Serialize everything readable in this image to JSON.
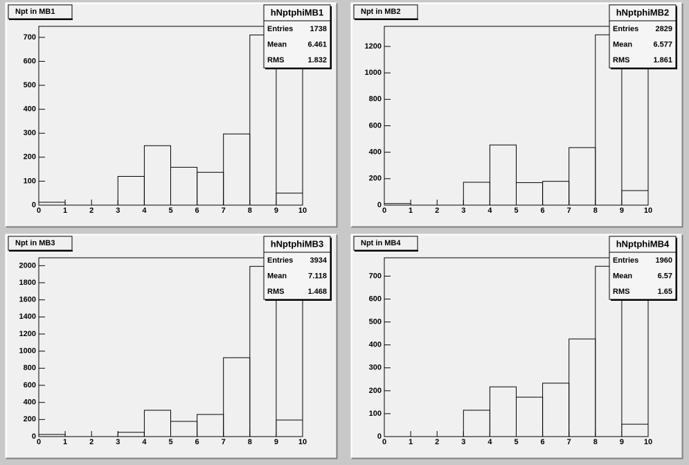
{
  "chart_data": [
    {
      "type": "histogram",
      "title": "Npt in MB1",
      "bins": [
        0,
        1,
        2,
        3,
        4,
        5,
        6,
        7,
        8,
        9,
        10
      ],
      "values": [
        12,
        0,
        0,
        120,
        248,
        158,
        137,
        297,
        710,
        50
      ],
      "xlim": [
        0,
        10
      ],
      "ylim": [
        0,
        746
      ],
      "xticks": [
        0,
        1,
        2,
        3,
        4,
        5,
        6,
        7,
        8,
        9,
        10
      ],
      "yticks": [
        0,
        100,
        200,
        300,
        400,
        500,
        600,
        700
      ],
      "stats": {
        "name": "hNptphiMB1",
        "rows": [
          {
            "label": "Entries",
            "value": 1738
          },
          {
            "label": "Mean",
            "value": 6.461
          },
          {
            "label": "RMS",
            "value": 1.832
          }
        ]
      }
    },
    {
      "type": "histogram",
      "title": "Npt in MB2",
      "bins": [
        0,
        1,
        2,
        3,
        4,
        5,
        6,
        7,
        8,
        9,
        10
      ],
      "values": [
        12,
        0,
        0,
        173,
        455,
        170,
        180,
        435,
        1288,
        110
      ],
      "xlim": [
        0,
        10
      ],
      "ylim": [
        0,
        1352
      ],
      "xticks": [
        0,
        1,
        2,
        3,
        4,
        5,
        6,
        7,
        8,
        9,
        10
      ],
      "yticks": [
        0,
        200,
        400,
        600,
        800,
        1000,
        1200
      ],
      "stats": {
        "name": "hNptphiMB2",
        "rows": [
          {
            "label": "Entries",
            "value": 2829
          },
          {
            "label": "Mean",
            "value": 6.577
          },
          {
            "label": "RMS",
            "value": 1.861
          }
        ]
      }
    },
    {
      "type": "histogram",
      "title": "Npt in MB3",
      "bins": [
        0,
        1,
        2,
        3,
        4,
        5,
        6,
        7,
        8,
        9,
        10
      ],
      "values": [
        25,
        0,
        0,
        50,
        308,
        178,
        259,
        923,
        1992,
        194
      ],
      "xlim": [
        0,
        10
      ],
      "ylim": [
        0,
        2092
      ],
      "xticks": [
        0,
        1,
        2,
        3,
        4,
        5,
        6,
        7,
        8,
        9,
        10
      ],
      "yticks": [
        0,
        200,
        400,
        600,
        800,
        1000,
        1200,
        1400,
        1600,
        1800,
        2000
      ],
      "stats": {
        "name": "hNptphiMB3",
        "rows": [
          {
            "label": "Entries",
            "value": 3934
          },
          {
            "label": "Mean",
            "value": 7.118
          },
          {
            "label": "RMS",
            "value": 1.468
          }
        ]
      }
    },
    {
      "type": "histogram",
      "title": "Npt in MB4",
      "bins": [
        0,
        1,
        2,
        3,
        4,
        5,
        6,
        7,
        8,
        9,
        10
      ],
      "values": [
        0,
        0,
        0,
        115,
        217,
        172,
        233,
        426,
        743,
        54
      ],
      "xlim": [
        0,
        10
      ],
      "ylim": [
        0,
        780
      ],
      "xticks": [
        0,
        1,
        2,
        3,
        4,
        5,
        6,
        7,
        8,
        9,
        10
      ],
      "yticks": [
        0,
        100,
        200,
        300,
        400,
        500,
        600,
        700
      ],
      "stats": {
        "name": "hNptphiMB4",
        "rows": [
          {
            "label": "Entries",
            "value": 1960
          },
          {
            "label": "Mean",
            "value": 6.57
          },
          {
            "label": "RMS",
            "value": 1.65
          }
        ]
      }
    }
  ]
}
